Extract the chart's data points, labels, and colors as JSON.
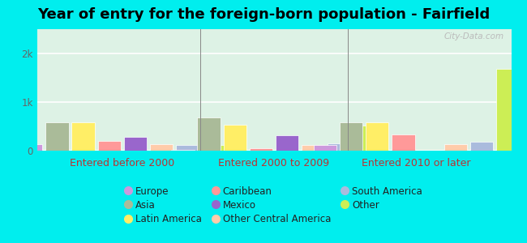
{
  "title": "Year of entry for the foreign-born population - Fairfield",
  "groups": [
    "Entered before 2000",
    "Entered 2000 to 2009",
    "Entered 2010 or later"
  ],
  "categories": [
    "Europe",
    "Asia",
    "Latin America",
    "Caribbean",
    "Mexico",
    "Other Central America",
    "South America",
    "Other"
  ],
  "colors": [
    "#cc99dd",
    "#aabb99",
    "#ffee66",
    "#ff9999",
    "#9966cc",
    "#ffccaa",
    "#aabbdd",
    "#ccee55"
  ],
  "values": {
    "Entered before 2000": [
      130,
      580,
      590,
      200,
      280,
      140,
      110,
      110
    ],
    "Entered 2000 to 2009": [
      10,
      680,
      530,
      55,
      310,
      125,
      155,
      510
    ],
    "Entered 2010 or later": [
      115,
      580,
      590,
      330,
      0,
      140,
      190,
      1680
    ]
  },
  "ylim": [
    0,
    2500
  ],
  "yticks": [
    0,
    1000,
    2000
  ],
  "ytick_labels": [
    "0",
    "1k",
    "2k"
  ],
  "bg_gradient_top": "#e8f5e8",
  "bg_gradient_bottom": "#f0fff0",
  "outer_background": "#00eeee",
  "title_fontsize": 13,
  "group_label_fontsize": 9,
  "legend_fontsize": 8.5,
  "bar_width": 0.055,
  "legend_items_col1": [
    [
      "Europe",
      "#cc99dd"
    ],
    [
      "Caribbean",
      "#ff9999"
    ],
    [
      "South America",
      "#aabbdd"
    ]
  ],
  "legend_items_col2": [
    [
      "Asia",
      "#aabb99"
    ],
    [
      "Mexico",
      "#9966cc"
    ],
    [
      "Other",
      "#ccee55"
    ]
  ],
  "legend_items_col3": [
    [
      "Latin America",
      "#ffee66"
    ],
    [
      "Other Central America",
      "#ffccaa"
    ]
  ]
}
